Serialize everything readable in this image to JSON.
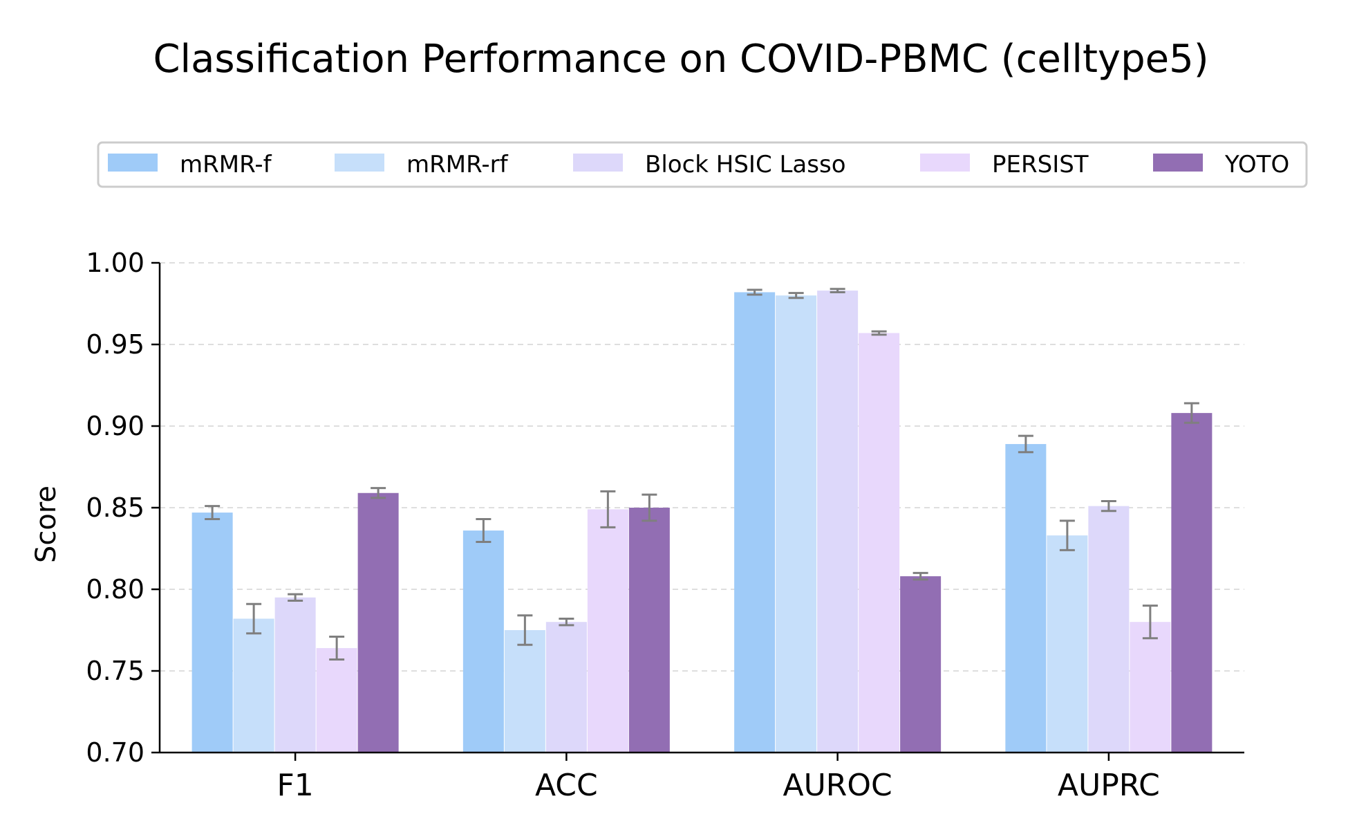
{
  "chart_data": {
    "type": "bar",
    "title": "Classification Performance on COVID-PBMC (celltype5)",
    "xlabel": "",
    "ylabel": "Score",
    "ylim": [
      0.7,
      1.0
    ],
    "yticks": [
      "0.70",
      "0.75",
      "0.80",
      "0.85",
      "0.90",
      "0.95",
      "1.00"
    ],
    "grid": "horizontal dashed",
    "legend_position": "top",
    "categories": [
      "F1",
      "ACC",
      "AUROC",
      "AUPRC"
    ],
    "series": [
      {
        "name": "mRMR-f",
        "color": "#9fcbf8",
        "values": [
          0.847,
          0.836,
          0.982,
          0.889
        ],
        "errors": [
          0.004,
          0.007,
          0.0015,
          0.005
        ]
      },
      {
        "name": "mRMR-rf",
        "color": "#c6dffa",
        "values": [
          0.782,
          0.775,
          0.98,
          0.833
        ],
        "errors": [
          0.009,
          0.009,
          0.0015,
          0.009
        ]
      },
      {
        "name": "Block HSIC Lasso",
        "color": "#ddd8fa",
        "values": [
          0.795,
          0.78,
          0.983,
          0.851
        ],
        "errors": [
          0.002,
          0.002,
          0.001,
          0.003
        ]
      },
      {
        "name": "PERSIST",
        "color": "#e8d8fc",
        "values": [
          0.764,
          0.849,
          0.957,
          0.78
        ],
        "errors": [
          0.007,
          0.011,
          0.001,
          0.01
        ]
      },
      {
        "name": "YOTO",
        "color": "#926eb3",
        "values": [
          0.859,
          0.85,
          0.808,
          0.908
        ],
        "errors": [
          0.003,
          0.008,
          0.002,
          0.006
        ]
      }
    ],
    "error_bar_color": "#7f7f7f"
  }
}
